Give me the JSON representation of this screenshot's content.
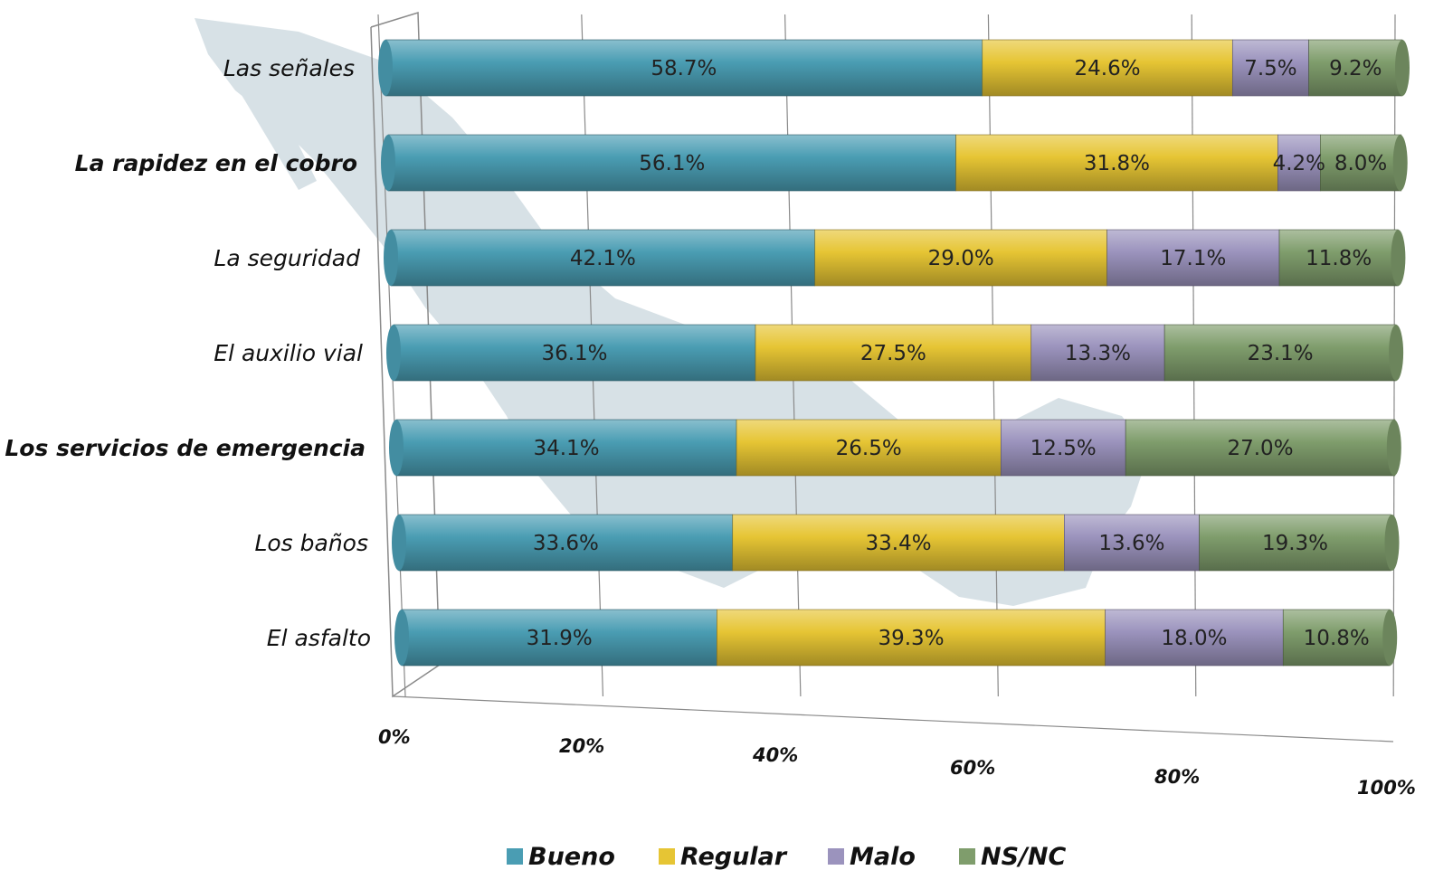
{
  "chart_data": {
    "type": "bar",
    "orientation": "horizontal",
    "stacked": true,
    "percent_stacked": true,
    "xlim": [
      0,
      100
    ],
    "x_ticks": [
      "0%",
      "20%",
      "40%",
      "60%",
      "80%",
      "100%"
    ],
    "categories": [
      "Las señales",
      "La rapidez en el cobro",
      "La seguridad",
      "El auxilio vial",
      "Los servicios de emergencia",
      "Los baños",
      "El asfalto"
    ],
    "bold_categories": [
      1,
      4
    ],
    "series": [
      {
        "name": "Bueno",
        "color": "#4a9db3",
        "values": [
          58.7,
          56.1,
          42.1,
          36.1,
          34.1,
          33.6,
          31.9
        ],
        "labels": [
          "58.7%",
          "56.1%",
          "42.1%",
          "36.1%",
          "34.1%",
          "33.6%",
          "31.9%"
        ]
      },
      {
        "name": "Regular",
        "color": "#e6c534",
        "values": [
          24.6,
          31.8,
          29.0,
          27.5,
          26.5,
          33.4,
          39.3
        ],
        "labels": [
          "24.6%",
          "31.8%",
          "29.0%",
          "27.5%",
          "26.5%",
          "33.4%",
          "39.3%"
        ]
      },
      {
        "name": "Malo",
        "color": "#9b93bd",
        "values": [
          7.5,
          4.2,
          17.1,
          13.3,
          12.5,
          13.6,
          18.0
        ],
        "labels": [
          "7.5%",
          "4.2%",
          "17.1%",
          "13.3%",
          "12.5%",
          "13.6%",
          "18.0%"
        ]
      },
      {
        "name": "NS/NC",
        "color": "#7f9d6c",
        "values": [
          9.2,
          8.0,
          11.8,
          23.1,
          27.0,
          19.3,
          10.8
        ],
        "labels": [
          "9.2%",
          "8.0%",
          "11.8%",
          "23.1%",
          "27.0%",
          "19.3%",
          "10.8%"
        ]
      }
    ],
    "legend": {
      "position": "bottom"
    },
    "grid": true,
    "background_map_color": "#c9d7dd"
  }
}
